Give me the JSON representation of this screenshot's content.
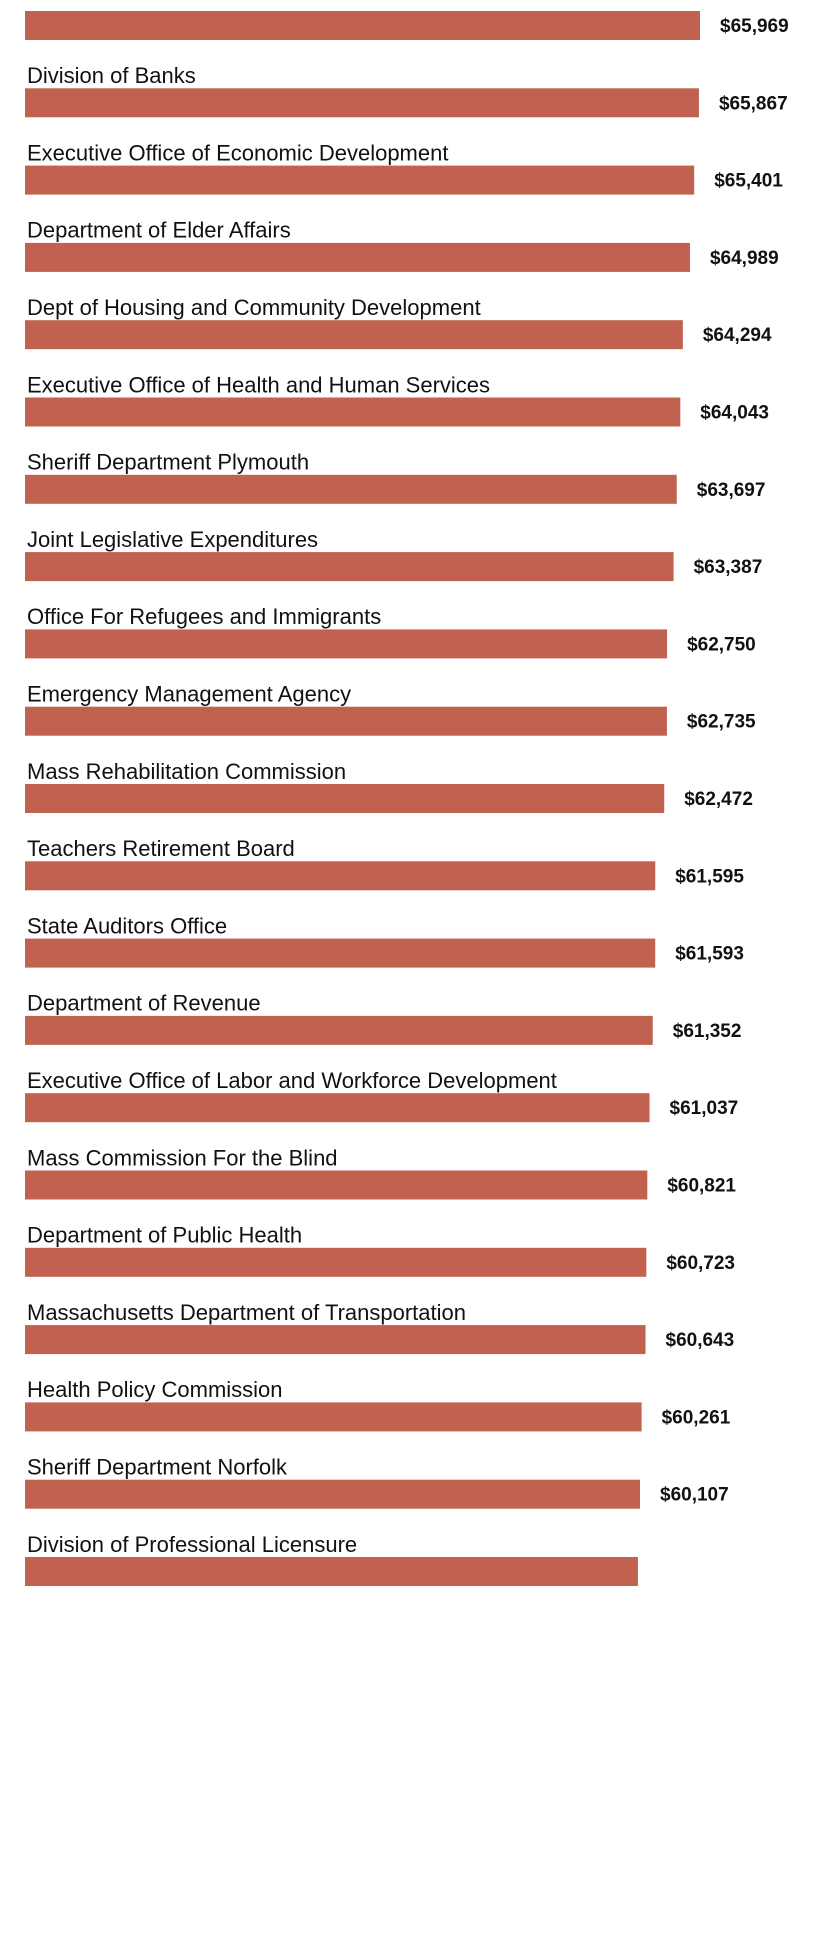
{
  "chart_data": {
    "type": "bar",
    "orientation": "horizontal",
    "color": "#c0624f",
    "categories": [
      null,
      "Division of Banks",
      "Executive Office of Economic Development",
      "Department of Elder Affairs",
      "Dept of Housing and Community Development",
      "Executive Office of Health and Human Services",
      "Sheriff Department Plymouth",
      "Joint Legislative Expenditures",
      "Office For Refugees and Immigrants",
      "Emergency Management Agency",
      "Mass Rehabilitation Commission",
      "Teachers Retirement Board",
      "State Auditors Office",
      "Department of Revenue",
      "Executive Office of Labor and Workforce Development",
      "Mass Commission For the Blind",
      "Department of Public Health",
      "Massachusetts Department of Transportation",
      "Health Policy Commission",
      "Sheriff Department Norfolk",
      "Division of Professional Licensure"
    ],
    "values": [
      65969,
      65867,
      65401,
      64989,
      64294,
      64043,
      63697,
      63387,
      62750,
      62735,
      62472,
      61595,
      61593,
      61352,
      61037,
      60821,
      60723,
      60643,
      60261,
      60107,
      59900
    ],
    "value_labels": [
      "$65,969",
      "$65,867",
      "$65,401",
      "$64,989",
      "$64,294",
      "$64,043",
      "$63,697",
      "$63,387",
      "$62,750",
      "$62,735",
      "$62,472",
      "$61,595",
      "$61,593",
      "$61,352",
      "$61,037",
      "$60,821",
      "$60,723",
      "$60,643",
      "$60,261",
      "$60,107",
      null
    ]
  }
}
